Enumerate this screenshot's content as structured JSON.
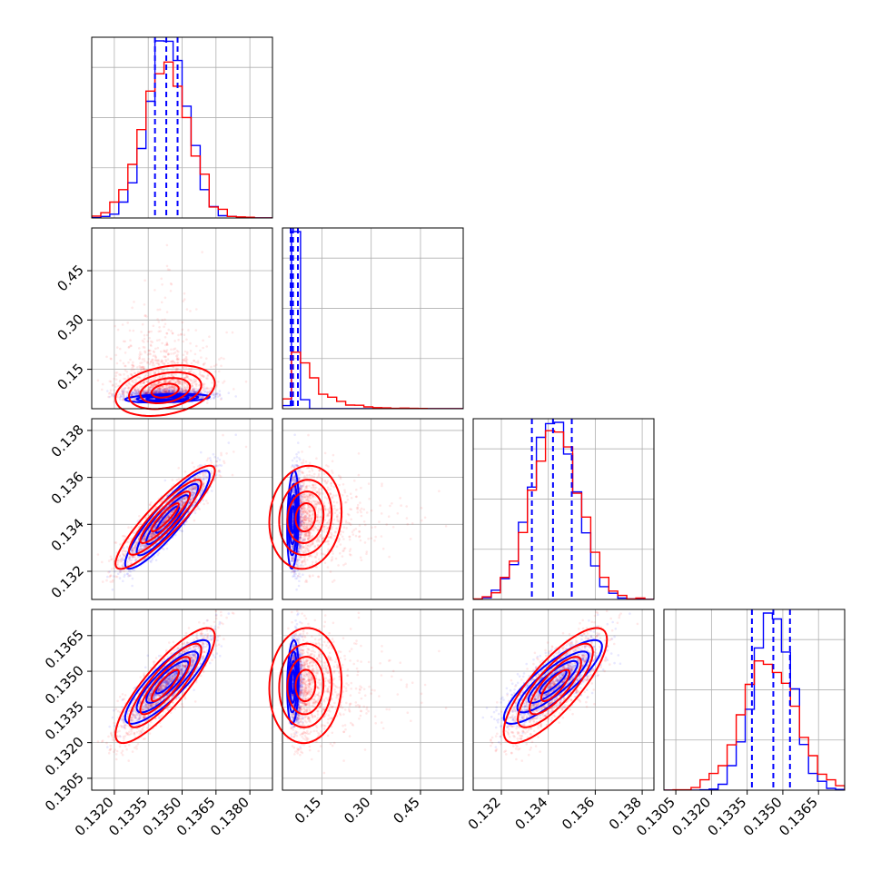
{
  "chart_data": {
    "type": "scatter",
    "subtype": "corner-plot",
    "title": "",
    "parameters": [
      {
        "label": "",
        "range": [
          0.131,
          0.139
        ],
        "ticks": [
          0.132,
          0.1335,
          0.135,
          0.1365,
          0.138
        ],
        "tick_labels": [
          "0.1320",
          "0.1335",
          "0.1350",
          "0.1365",
          "0.1380"
        ],
        "quantiles": [
          0.1338,
          0.1343,
          0.1348
        ]
      },
      {
        "label": "",
        "range": [
          0.03,
          0.58
        ],
        "ticks": [
          0.15,
          0.3,
          0.45
        ],
        "tick_labels": [
          "0.15",
          "0.30",
          "0.45"
        ],
        "quantiles": [
          0.055,
          0.062,
          0.077
        ]
      },
      {
        "label": "",
        "range": [
          0.1308,
          0.1385
        ],
        "ticks": [
          0.132,
          0.134,
          0.136,
          0.138
        ],
        "tick_labels": [
          "0.132",
          "0.134",
          "0.136",
          "0.138"
        ],
        "quantiles": [
          0.1333,
          0.1342,
          0.135
        ]
      },
      {
        "label": "",
        "range": [
          0.13,
          0.1376
        ],
        "ticks": [
          0.1305,
          0.132,
          0.1335,
          0.135,
          0.1365
        ],
        "tick_labels": [
          "0.1305",
          "0.1320",
          "0.1335",
          "0.1350",
          "0.1365"
        ],
        "quantiles": [
          0.1337,
          0.1346,
          0.1353
        ]
      }
    ],
    "series": [
      {
        "color": "#0000ff",
        "means": [
          0.13435,
          0.064,
          0.1342,
          0.13455
        ],
        "sds": [
          0.00085,
          0.012,
          0.00095,
          0.0008
        ],
        "correlation": [
          [
            1,
            0.3,
            0.9,
            0.85
          ],
          [
            0.3,
            1,
            0.2,
            0.15
          ],
          [
            0.9,
            0.2,
            1,
            0.85
          ],
          [
            0.85,
            0.15,
            0.85,
            1
          ]
        ]
      },
      {
        "color": "#ff0000",
        "means": [
          0.13425,
          0.12,
          0.1343,
          0.1344
        ],
        "sds": [
          0.001,
          0.085,
          0.001,
          0.0011
        ],
        "correlation": [
          [
            1,
            0.3,
            0.9,
            0.85
          ],
          [
            0.3,
            1,
            0.1,
            0.05
          ],
          [
            0.9,
            0.1,
            1,
            0.8
          ],
          [
            0.85,
            0.05,
            0.8,
            1
          ]
        ]
      }
    ],
    "colors": {
      "series_a": "#0000ff",
      "series_b": "#ff0000",
      "grid": "#b0b0b0"
    },
    "grid": true,
    "legend": "none"
  }
}
